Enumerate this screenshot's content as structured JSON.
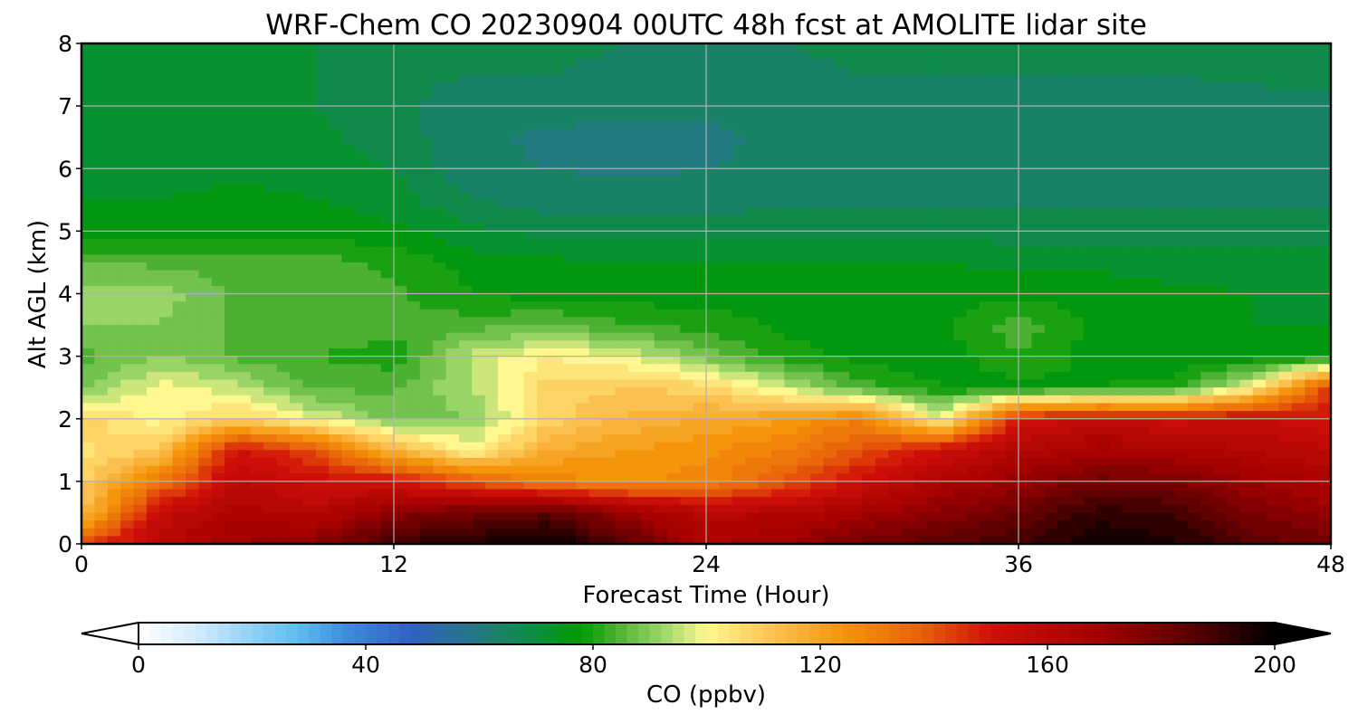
{
  "chart_data": {
    "type": "heatmap",
    "title": "WRF-Chem CO  20230904 00UTC 48h fcst at AMOLITE lidar site",
    "xlabel": "Forecast Time (Hour)",
    "ylabel": "Alt AGL (km)",
    "xlim": [
      0,
      48
    ],
    "ylim": [
      0,
      8
    ],
    "xticks": [
      "0",
      "12",
      "24",
      "36",
      "48"
    ],
    "yticks": [
      "0",
      "1",
      "2",
      "3",
      "4",
      "5",
      "6",
      "7",
      "8"
    ],
    "grid": true,
    "x": [
      0,
      3,
      6,
      9,
      12,
      15,
      18,
      21,
      24,
      27,
      30,
      33,
      36,
      39,
      42,
      45,
      48
    ],
    "y": [
      0,
      0.5,
      1,
      1.5,
      2,
      2.5,
      3,
      3.5,
      4,
      4.5,
      5,
      5.5,
      6,
      6.5,
      7,
      7.5,
      8
    ],
    "values": [
      [
        140,
        160,
        170,
        175,
        190,
        195,
        200,
        185,
        165,
        170,
        180,
        185,
        190,
        198,
        195,
        185,
        180
      ],
      [
        112,
        155,
        165,
        160,
        175,
        180,
        185,
        170,
        160,
        162,
        168,
        175,
        182,
        192,
        190,
        178,
        172
      ],
      [
        108,
        132,
        158,
        152,
        150,
        138,
        128,
        125,
        128,
        138,
        152,
        164,
        172,
        180,
        178,
        170,
        165
      ],
      [
        105,
        110,
        152,
        140,
        115,
        100,
        118,
        122,
        125,
        130,
        140,
        152,
        162,
        168,
        165,
        162,
        158
      ],
      [
        108,
        100,
        108,
        98,
        88,
        90,
        108,
        115,
        118,
        122,
        130,
        98,
        150,
        155,
        152,
        155,
        150
      ],
      [
        88,
        100,
        95,
        85,
        85,
        94,
        108,
        110,
        108,
        96,
        84,
        78,
        76,
        78,
        80,
        100,
        145
      ],
      [
        84,
        90,
        85,
        82,
        80,
        95,
        102,
        98,
        88,
        80,
        76,
        75,
        82,
        76,
        74,
        75,
        76
      ],
      [
        90,
        90,
        85,
        86,
        83,
        84,
        86,
        82,
        80,
        77,
        76,
        77,
        84,
        77,
        75,
        74,
        74
      ],
      [
        92,
        92,
        85,
        84,
        83,
        78,
        76,
        76,
        76,
        77,
        77,
        76,
        77,
        76,
        75,
        74,
        73
      ],
      [
        86,
        85,
        84,
        84,
        81,
        76,
        75,
        74,
        74,
        74,
        74,
        74,
        73,
        73,
        72,
        72,
        72
      ],
      [
        75,
        76,
        77,
        76,
        75,
        71,
        68,
        68,
        68,
        69,
        69,
        68,
        68,
        68,
        68,
        68,
        68
      ],
      [
        74,
        74,
        75,
        74,
        72,
        66,
        64,
        64,
        64,
        65,
        65,
        65,
        65,
        65,
        65,
        65,
        65
      ],
      [
        73,
        73,
        73,
        72,
        70,
        63,
        62,
        61,
        62,
        63,
        63,
        64,
        64,
        64,
        64,
        64,
        64
      ],
      [
        73,
        73,
        72,
        71,
        68,
        63,
        61,
        61,
        61,
        63,
        64,
        64,
        64,
        64,
        64,
        64,
        64
      ],
      [
        73,
        72,
        71,
        70,
        67,
        64,
        64,
        63,
        63,
        64,
        64,
        64,
        64,
        64,
        64,
        64,
        64
      ],
      [
        74,
        72,
        71,
        70,
        67,
        66,
        66,
        65,
        65,
        65,
        66,
        66,
        66,
        66,
        66,
        67,
        68
      ],
      [
        74,
        72,
        71,
        70,
        67,
        67,
        67,
        66,
        66,
        66,
        67,
        67,
        67,
        68,
        68,
        69,
        70
      ]
    ],
    "colorbar": {
      "label": "CO  (ppbv)",
      "min": 0,
      "max": 200,
      "ticks": [
        "0",
        "40",
        "80",
        "120",
        "160",
        "200"
      ],
      "extend": "both",
      "colormap": [
        [
          0,
          "#ffffff"
        ],
        [
          10,
          "#d4ecfb"
        ],
        [
          20,
          "#8fd0f6"
        ],
        [
          28,
          "#5fbef0"
        ],
        [
          36,
          "#3f8fdc"
        ],
        [
          48,
          "#3060c2"
        ],
        [
          60,
          "#237a80"
        ],
        [
          70,
          "#0a8e3e"
        ],
        [
          78,
          "#009a00"
        ],
        [
          84,
          "#4cb032"
        ],
        [
          92,
          "#98d468"
        ],
        [
          100,
          "#fff890"
        ],
        [
          112,
          "#fbc050"
        ],
        [
          124,
          "#f5950c"
        ],
        [
          138,
          "#e8600a"
        ],
        [
          150,
          "#d01008"
        ],
        [
          170,
          "#a00000"
        ],
        [
          185,
          "#5c0000"
        ],
        [
          200,
          "#000000"
        ]
      ]
    }
  }
}
